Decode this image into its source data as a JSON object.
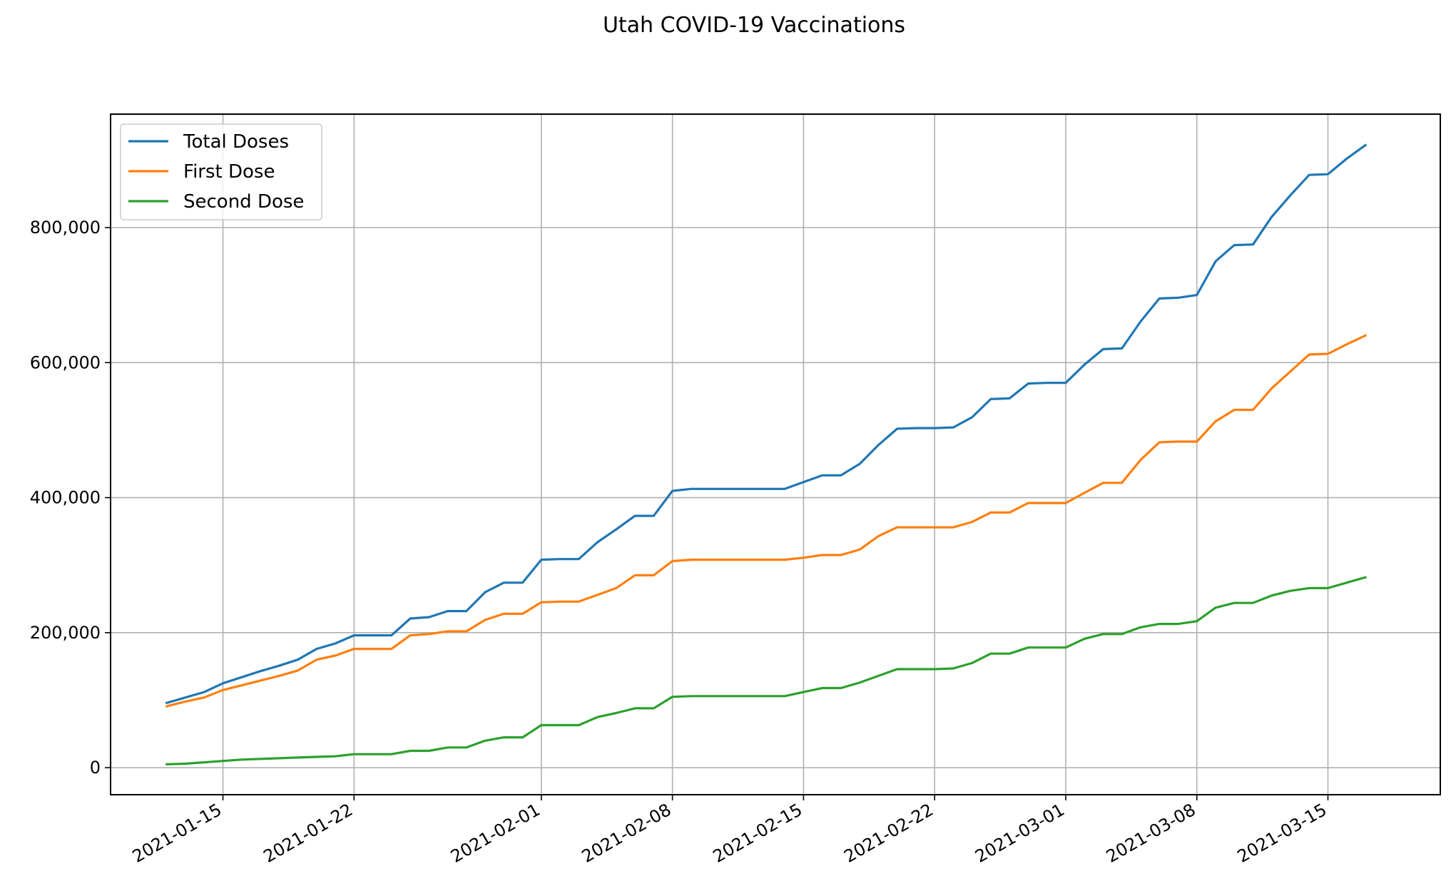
{
  "chart_data": {
    "type": "line",
    "title": "Utah COVID-19 Vaccinations",
    "xlabel": "",
    "ylabel": "",
    "x_range": [
      "2021-01-09",
      "2021-03-21"
    ],
    "ylim": [
      -40000,
      968000
    ],
    "x_ticks": [
      "2021-01-15",
      "2021-01-22",
      "2021-02-01",
      "2021-02-08",
      "2021-02-15",
      "2021-02-22",
      "2021-03-01",
      "2021-03-08",
      "2021-03-15"
    ],
    "y_ticks": [
      0,
      200000,
      400000,
      600000,
      800000
    ],
    "y_tick_labels": [
      "0",
      "200,000",
      "400,000",
      "600,000",
      "800,000"
    ],
    "grid": true,
    "legend_position": "top-left",
    "x": [
      "2021-01-12",
      "2021-01-13",
      "2021-01-14",
      "2021-01-15",
      "2021-01-16",
      "2021-01-17",
      "2021-01-18",
      "2021-01-19",
      "2021-01-20",
      "2021-01-21",
      "2021-01-22",
      "2021-01-23",
      "2021-01-24",
      "2021-01-25",
      "2021-01-26",
      "2021-01-27",
      "2021-01-28",
      "2021-01-29",
      "2021-01-30",
      "2021-01-31",
      "2021-02-01",
      "2021-02-02",
      "2021-02-03",
      "2021-02-04",
      "2021-02-05",
      "2021-02-06",
      "2021-02-07",
      "2021-02-08",
      "2021-02-09",
      "2021-02-10",
      "2021-02-11",
      "2021-02-12",
      "2021-02-13",
      "2021-02-14",
      "2021-02-15",
      "2021-02-16",
      "2021-02-17",
      "2021-02-18",
      "2021-02-19",
      "2021-02-20",
      "2021-02-21",
      "2021-02-22",
      "2021-02-23",
      "2021-02-24",
      "2021-02-25",
      "2021-02-26",
      "2021-02-27",
      "2021-02-28",
      "2021-03-01",
      "2021-03-02",
      "2021-03-03",
      "2021-03-04",
      "2021-03-05",
      "2021-03-06",
      "2021-03-07",
      "2021-03-08",
      "2021-03-09",
      "2021-03-10",
      "2021-03-11",
      "2021-03-12",
      "2021-03-13",
      "2021-03-14",
      "2021-03-15",
      "2021-03-16",
      "2021-03-17"
    ],
    "series": [
      {
        "name": "Total Doses",
        "color": "#1f77b4",
        "values": [
          96000,
          104000,
          112000,
          125000,
          134000,
          143000,
          151000,
          160000,
          176000,
          184000,
          196000,
          196000,
          196000,
          221000,
          223000,
          232000,
          232000,
          260000,
          274000,
          274000,
          308000,
          309000,
          309000,
          334000,
          353000,
          373000,
          373000,
          410000,
          413000,
          413000,
          413000,
          413000,
          413000,
          413000,
          423000,
          433000,
          433000,
          450000,
          478000,
          502000,
          503000,
          503000,
          504000,
          519000,
          546000,
          547000,
          569000,
          570000,
          570000,
          597000,
          620000,
          621000,
          661000,
          695000,
          696000,
          700000,
          750000,
          774000,
          775000,
          816000,
          848000,
          878000,
          879000,
          902000,
          922000
        ]
      },
      {
        "name": "First Dose",
        "color": "#ff7f0e",
        "values": [
          91000,
          98000,
          104000,
          115000,
          122000,
          129000,
          136000,
          144000,
          160000,
          166000,
          176000,
          176000,
          176000,
          196000,
          198000,
          202000,
          202000,
          219000,
          228000,
          228000,
          245000,
          246000,
          246000,
          256000,
          266000,
          285000,
          285000,
          306000,
          308000,
          308000,
          308000,
          308000,
          308000,
          308000,
          311000,
          315000,
          315000,
          323000,
          343000,
          356000,
          356000,
          356000,
          356000,
          364000,
          378000,
          378000,
          392000,
          392000,
          392000,
          407000,
          422000,
          422000,
          456000,
          482000,
          483000,
          483000,
          513000,
          530000,
          530000,
          562000,
          587000,
          612000,
          613000,
          627000,
          640000
        ]
      },
      {
        "name": "Second Dose",
        "color": "#2ca02c",
        "values": [
          5000,
          6000,
          8000,
          10000,
          12000,
          13000,
          14000,
          15000,
          16000,
          17000,
          20000,
          20000,
          20000,
          25000,
          25000,
          30000,
          30000,
          40000,
          45000,
          45000,
          63000,
          63000,
          63000,
          75000,
          81000,
          88000,
          88000,
          105000,
          106000,
          106000,
          106000,
          106000,
          106000,
          106000,
          112000,
          118000,
          118000,
          126000,
          136000,
          146000,
          146000,
          146000,
          147000,
          155000,
          169000,
          169000,
          178000,
          178000,
          178000,
          191000,
          198000,
          198000,
          208000,
          213000,
          213000,
          217000,
          237000,
          244000,
          244000,
          255000,
          262000,
          266000,
          266000,
          274000,
          282000
        ]
      }
    ]
  }
}
